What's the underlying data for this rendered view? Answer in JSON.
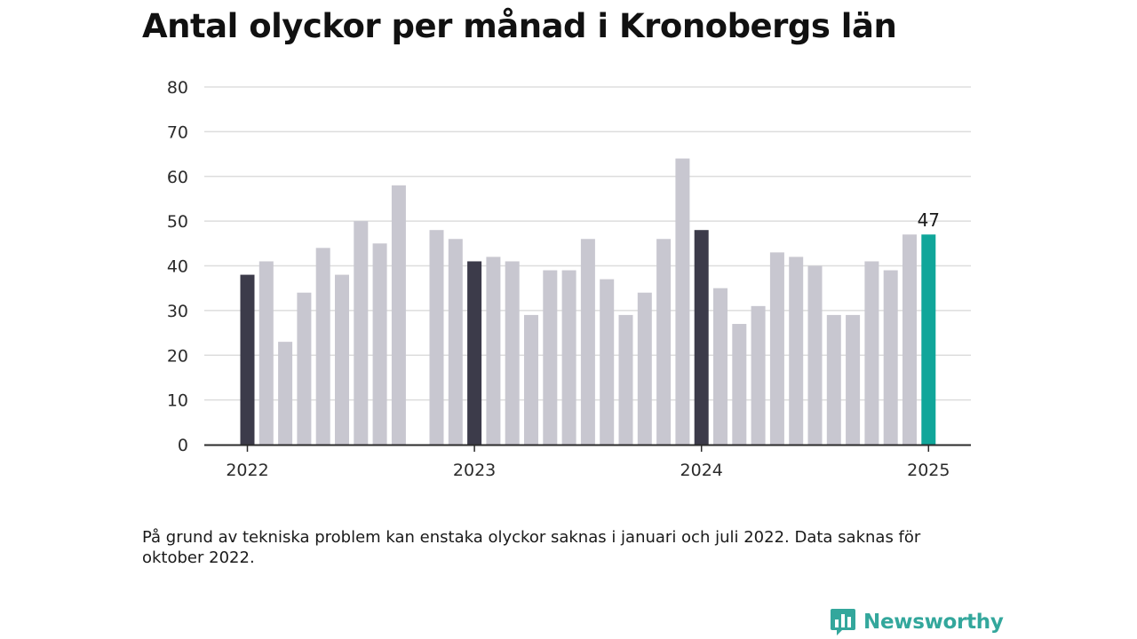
{
  "title": "Antal olyckor per månad i Kronobergs län",
  "note": "På grund av tekniska problem kan enstaka olyckor saknas i januari och juli 2022. Data saknas för oktober 2022.",
  "brand": {
    "name": "Newsworthy",
    "icon": "newsworthy-bar-logo-icon",
    "color": "#33a79c"
  },
  "chart_data": {
    "type": "bar",
    "title": "Antal olyckor per månad i Kronobergs län",
    "xlabel": "",
    "ylabel": "",
    "ylim": [
      0,
      80
    ],
    "yticks": [
      0,
      10,
      20,
      30,
      40,
      50,
      60,
      70,
      80
    ],
    "xtick_labels": [
      "2022",
      "2023",
      "2024",
      "2025"
    ],
    "grid": true,
    "colors": {
      "default": "#c8c7d0",
      "january": "#3c3b4a",
      "latest": "#10a69a",
      "grid": "#dddddd",
      "axis": "#2b2b2b"
    },
    "categories": [
      "2022-01",
      "2022-02",
      "2022-03",
      "2022-04",
      "2022-05",
      "2022-06",
      "2022-07",
      "2022-08",
      "2022-09",
      "2022-10",
      "2022-11",
      "2022-12",
      "2023-01",
      "2023-02",
      "2023-03",
      "2023-04",
      "2023-05",
      "2023-06",
      "2023-07",
      "2023-08",
      "2023-09",
      "2023-10",
      "2023-11",
      "2023-12",
      "2024-01",
      "2024-02",
      "2024-03",
      "2024-04",
      "2024-05",
      "2024-06",
      "2024-07",
      "2024-08",
      "2024-09",
      "2024-10",
      "2024-11",
      "2024-12",
      "2025-01"
    ],
    "values": [
      38,
      41,
      23,
      34,
      44,
      38,
      50,
      45,
      58,
      null,
      48,
      46,
      41,
      42,
      41,
      29,
      39,
      39,
      46,
      37,
      29,
      34,
      46,
      64,
      48,
      35,
      27,
      31,
      43,
      42,
      40,
      29,
      29,
      41,
      39,
      47,
      47
    ],
    "highlight": [
      "january",
      "",
      "",
      "",
      "",
      "",
      "",
      "",
      "",
      "",
      "",
      "",
      "january",
      "",
      "",
      "",
      "",
      "",
      "",
      "",
      "",
      "",
      "",
      "",
      "january",
      "",
      "",
      "",
      "",
      "",
      "",
      "",
      "",
      "",
      "",
      "",
      "latest"
    ],
    "annotations": [
      {
        "category": "2025-01",
        "text": "47"
      }
    ]
  }
}
